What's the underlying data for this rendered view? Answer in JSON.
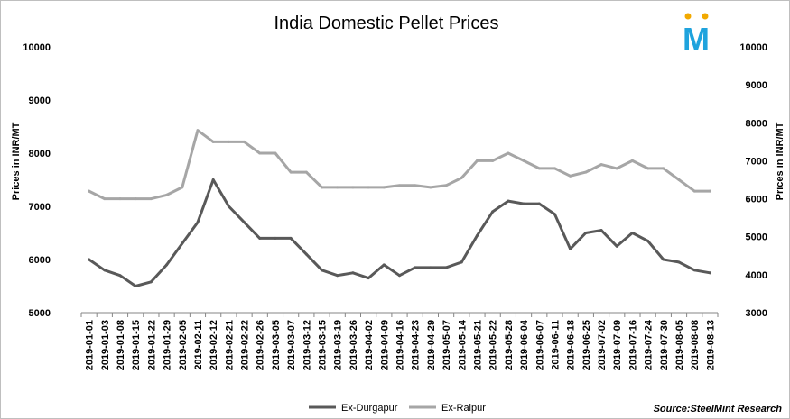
{
  "chart_data": {
    "type": "line",
    "title": "India Domestic Pellet Prices",
    "ylabel_left": "Prices in INR/MT",
    "ylabel_right": "Prices in INR/MT",
    "ylim_left": [
      5000,
      10000
    ],
    "ylim_right": [
      3000,
      10000
    ],
    "yticks_left": [
      5000,
      6000,
      7000,
      8000,
      9000,
      10000
    ],
    "yticks_right": [
      3000,
      4000,
      5000,
      6000,
      7000,
      8000,
      9000,
      10000
    ],
    "grid": false,
    "legend_position": "bottom",
    "source": "Source:SteelMint Research",
    "logo_text": "M",
    "x": [
      "2019-01-01",
      "2019-01-03",
      "2019-01-08",
      "2019-01-15",
      "2019-01-22",
      "2019-01-29",
      "2019-02-05",
      "2019-02-11",
      "2019-02-12",
      "2019-02-21",
      "2019-02-22",
      "2019-02-26",
      "2019-03-05",
      "2019-03-07",
      "2019-03-12",
      "2019-03-15",
      "2019-03-19",
      "2019-03-26",
      "2019-04-02",
      "2019-04-09",
      "2019-04-16",
      "2019-04-23",
      "2019-04-29",
      "2019-05-07",
      "2019-05-14",
      "2019-05-21",
      "2019-05-22",
      "2019-05-28",
      "2019-06-04",
      "2019-06-07",
      "2019-06-11",
      "2019-06-18",
      "2019-06-25",
      "2019-07-02",
      "2019-07-09",
      "2019-07-16",
      "2019-07-24",
      "2019-07-30",
      "2019-08-05",
      "2019-08-08",
      "2019-08-13"
    ],
    "series": [
      {
        "name": "Ex-Durgapur",
        "axis": "left",
        "color": "#595959",
        "values": [
          6000,
          5800,
          5700,
          5500,
          5580,
          5900,
          6300,
          6700,
          7500,
          7000,
          6700,
          6400,
          6400,
          6400,
          6100,
          5800,
          5700,
          5750,
          5650,
          5900,
          5700,
          5850,
          5850,
          5850,
          5950,
          6450,
          6900,
          7100,
          7050,
          7050,
          6850,
          6200,
          6500,
          6550,
          6250,
          6500,
          6350,
          6000,
          5950,
          5800,
          5750
        ]
      },
      {
        "name": "Ex-Raipur",
        "axis": "right",
        "color": "#a6a6a6",
        "values": [
          6200,
          6000,
          6000,
          6000,
          6000,
          6100,
          6300,
          7800,
          7500,
          7500,
          7500,
          7200,
          7200,
          6700,
          6700,
          6300,
          6300,
          6300,
          6300,
          6300,
          6350,
          6350,
          6300,
          6350,
          6550,
          7000,
          7000,
          7200,
          7000,
          6800,
          6800,
          6600,
          6700,
          6900,
          6800,
          7000,
          6800,
          6800,
          6500,
          6200,
          6200
        ]
      }
    ]
  }
}
